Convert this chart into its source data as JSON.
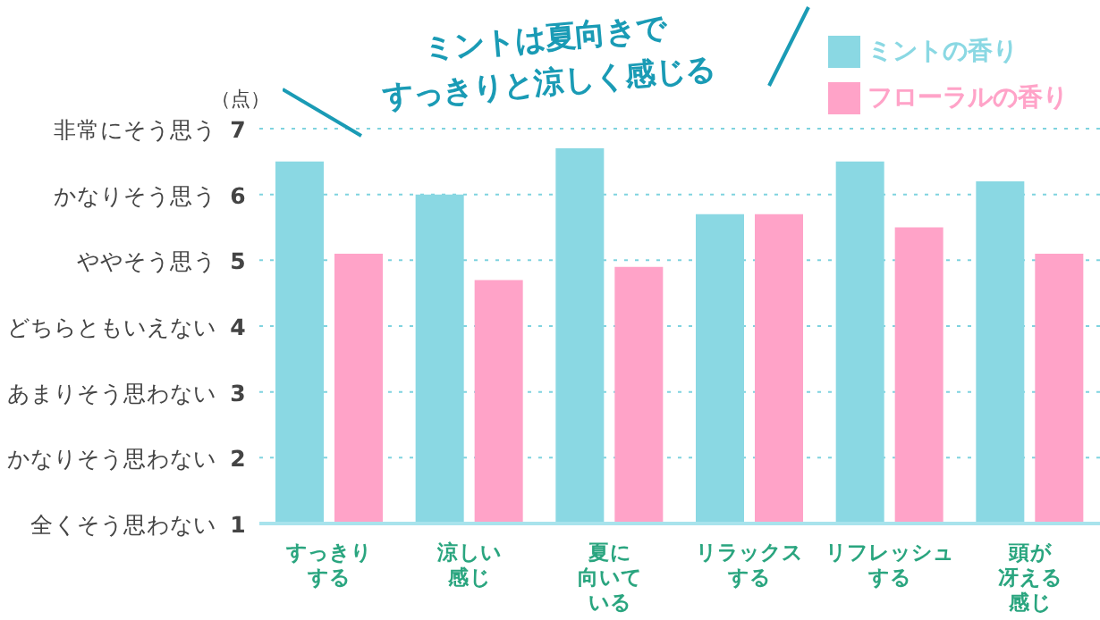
{
  "chart_data": {
    "type": "bar",
    "title": "ミントは夏向きですっきりと涼しく感じる",
    "ylabel": "（点）",
    "categories": [
      "すっきりする",
      "涼しい感じ",
      "夏に向いている",
      "リラックスする",
      "リフレッシュする",
      "頭が冴える感じ"
    ],
    "series": [
      {
        "name": "ミントの香り",
        "color": "#8ad8e3",
        "values": [
          6.5,
          6.0,
          6.7,
          5.7,
          6.5,
          6.2
        ]
      },
      {
        "name": "フローラルの香り",
        "color": "#ffa3c8",
        "values": [
          5.1,
          4.7,
          4.9,
          5.7,
          5.5,
          5.1
        ]
      }
    ],
    "ylim": [
      1,
      7
    ],
    "yticks": [
      1,
      2,
      3,
      4,
      5,
      6,
      7
    ],
    "annotations": [
      "全くそう思わない",
      "かなりそう思わない",
      "あまりそう思わない",
      "どちらともいえない",
      "ややそう思う",
      "かなりそう思う",
      "非常にそう思う"
    ],
    "grid": "y",
    "legend": "top right"
  }
}
